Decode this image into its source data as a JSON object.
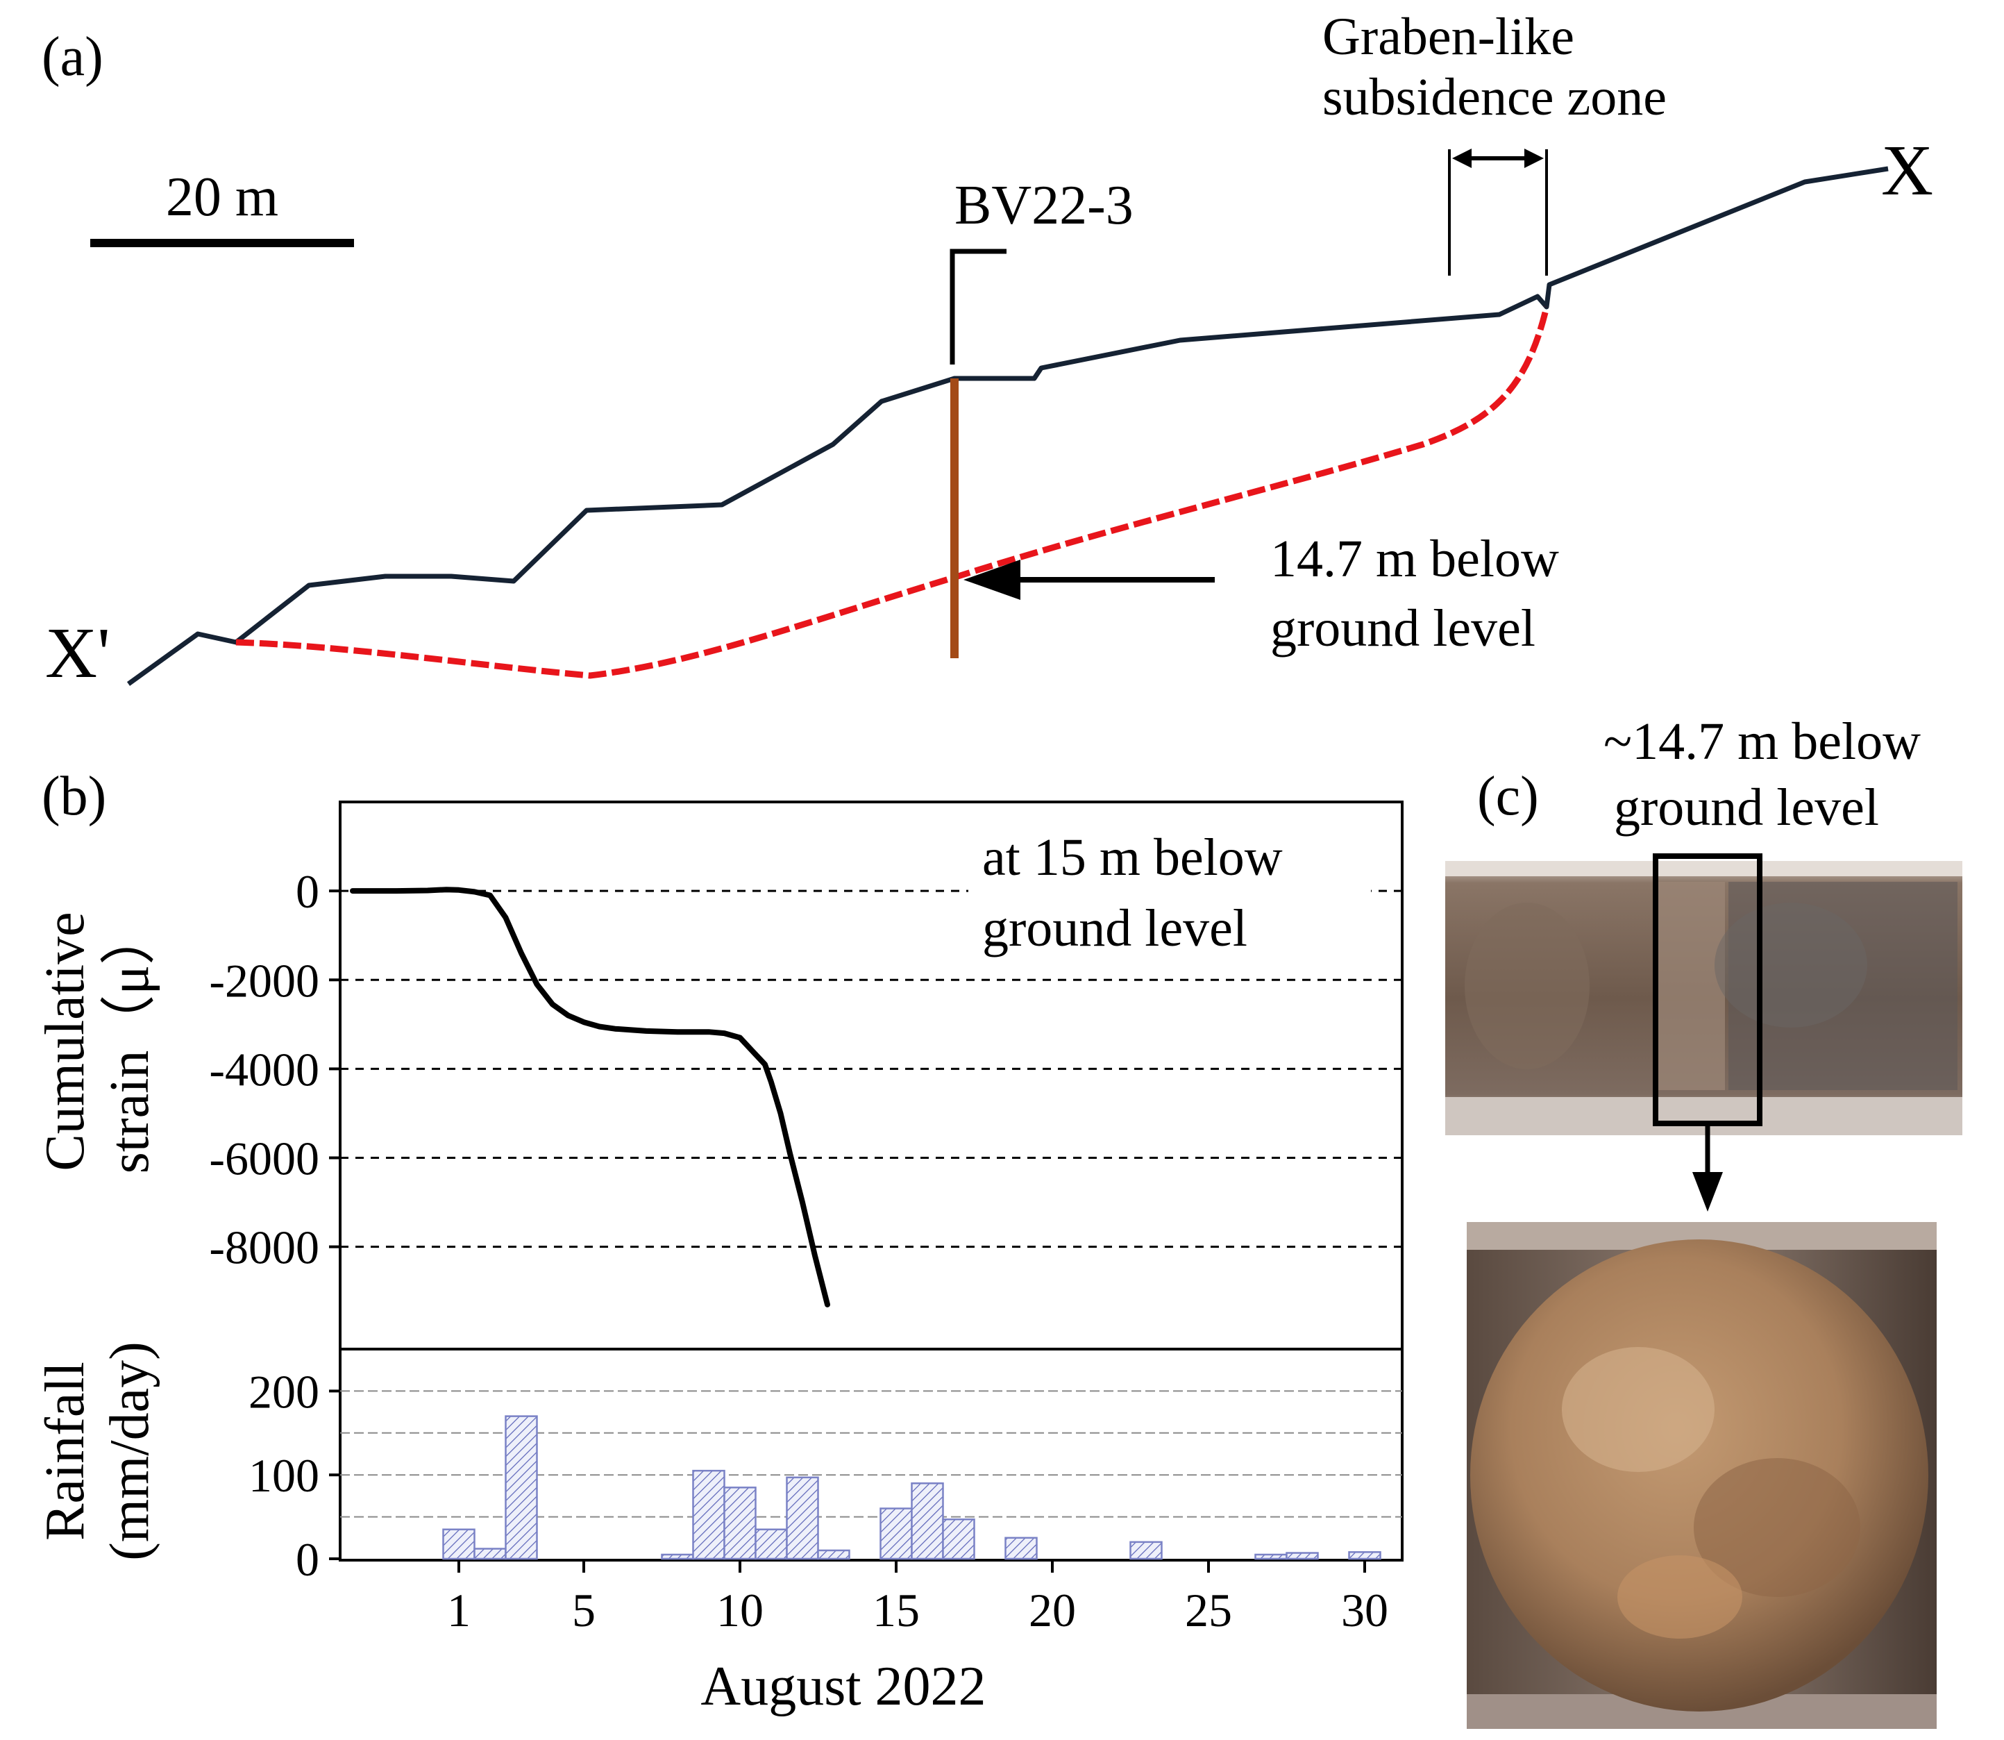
{
  "panel_a": {
    "label": "(a)",
    "scale_label": "20 m",
    "borehole_label": "BV22-3",
    "graben_label_line1": "Graben-like",
    "graben_label_line2": "subsidence zone",
    "end_label_right": "X",
    "end_label_left": "X'",
    "depth_label_line1": "14.7 m below",
    "depth_label_line2": "ground level",
    "colors": {
      "ground": "#152233",
      "slip_surface": "#e8151b",
      "borehole": "#a34a17"
    }
  },
  "panel_b": {
    "label": "(b)",
    "strain_ylabel_line1": "Cumulative",
    "strain_ylabel_line2": "strain（μ）",
    "annotation_line1": "at 15 m below",
    "annotation_line2": "ground level",
    "rain_ylabel_line1": "Rainfall",
    "rain_ylabel_line2": "(mm/day)",
    "xlabel": "August 2022"
  },
  "panel_c": {
    "label": "(c)",
    "caption_line1": "~14.7 m below",
    "caption_line2": "ground level"
  },
  "chart_data": [
    {
      "type": "line",
      "xlabel": "August 2022",
      "ylabel": "Cumulative strain（μ）",
      "xlim": [
        -2.8,
        31.2
      ],
      "ylim": [
        -10300,
        2000
      ],
      "yticks": [
        0,
        -2000,
        -4000,
        -6000,
        -8000
      ],
      "grid": "dashed horizontal",
      "annotation": "at 15 m below ground level",
      "series": [
        {
          "x": [
            -2.4,
            -1.0,
            0.0,
            0.6,
            1.0,
            1.5,
            2.0,
            2.5,
            3.0,
            3.5,
            4.0,
            4.5,
            5.0,
            5.5,
            6.0,
            7.0,
            8.0,
            9.0,
            9.5,
            10.0,
            10.4,
            10.8,
            11.0,
            11.3,
            11.6,
            12.0,
            12.4,
            12.8
          ],
          "y": [
            0,
            0,
            10,
            30,
            20,
            -20,
            -100,
            -600,
            -1400,
            -2100,
            -2550,
            -2800,
            -2950,
            -3050,
            -3100,
            -3150,
            -3170,
            -3170,
            -3200,
            -3300,
            -3600,
            -3900,
            -4300,
            -5000,
            -5900,
            -7000,
            -8200,
            -9300
          ]
        }
      ]
    },
    {
      "type": "bar",
      "xlabel": "August 2022",
      "ylabel": "Rainfall (mm/day)",
      "xlim": [
        -2.8,
        31.2
      ],
      "ylim": [
        0,
        250
      ],
      "yticks": [
        0,
        100,
        200
      ],
      "xticks": [
        1,
        5,
        10,
        15,
        20,
        25,
        30
      ],
      "x": [
        1,
        2,
        3,
        8,
        9,
        10,
        11,
        12,
        13,
        15,
        16,
        17,
        19,
        23,
        27,
        28,
        30
      ],
      "values": [
        35,
        12,
        170,
        5,
        105,
        85,
        35,
        97,
        10,
        60,
        90,
        47,
        25,
        20,
        5,
        7,
        8
      ],
      "bar_color": "#7a82c6"
    }
  ]
}
